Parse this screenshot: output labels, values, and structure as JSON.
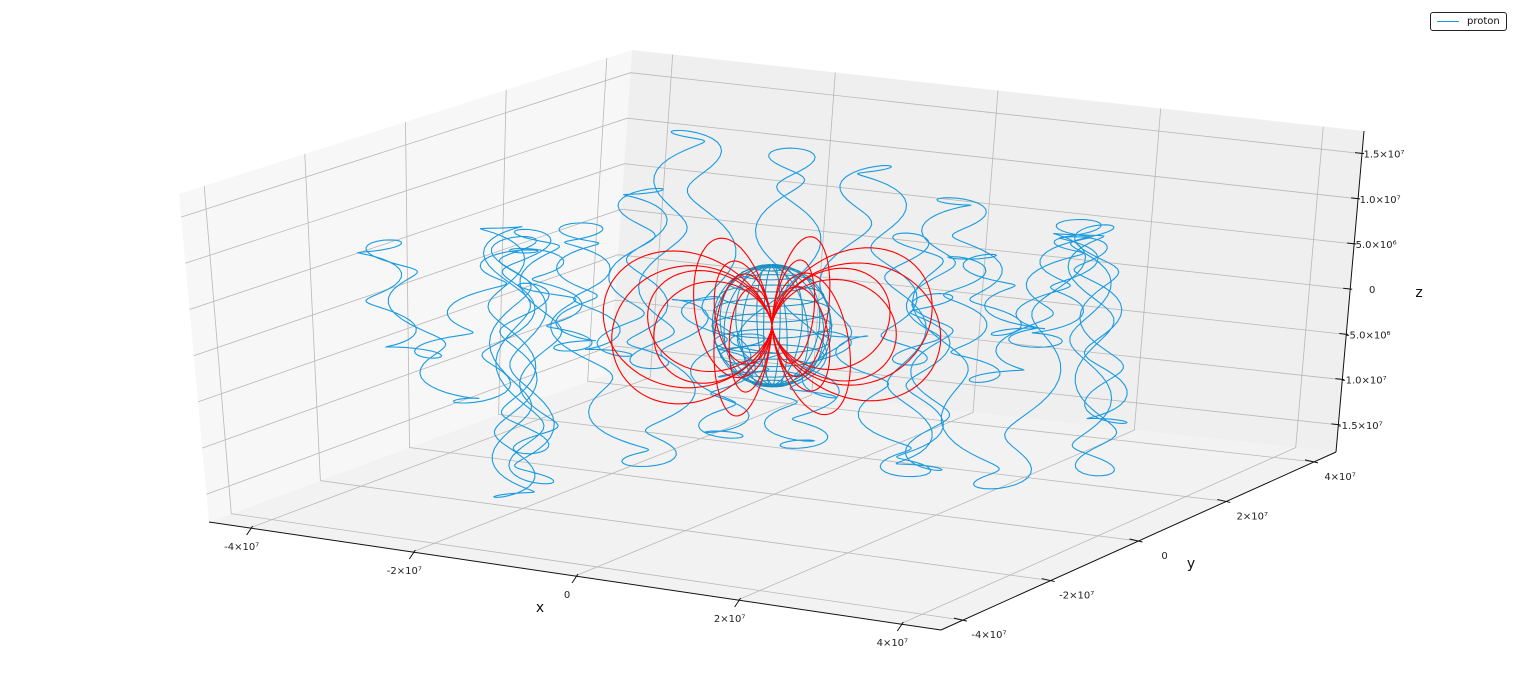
{
  "chart_data": {
    "type": "line",
    "projection": "3d",
    "title": "",
    "xlabel": "x",
    "ylabel": "y",
    "zlabel": "z",
    "xlim": [
      -45000000,
      45000000
    ],
    "ylim": [
      -45000000,
      45000000
    ],
    "zlim": [
      -18000000,
      17500000
    ],
    "x_ticks": [
      {
        "value": -40000000,
        "label": "-4×10⁷"
      },
      {
        "value": -20000000,
        "label": "-2×10⁷"
      },
      {
        "value": 0,
        "label": "0"
      },
      {
        "value": 20000000,
        "label": "2×10⁷"
      },
      {
        "value": 40000000,
        "label": "4×10⁷"
      }
    ],
    "y_ticks": [
      {
        "value": -40000000,
        "label": "-4×10⁷"
      },
      {
        "value": -20000000,
        "label": "-2×10⁷"
      },
      {
        "value": 0,
        "label": "0"
      },
      {
        "value": 20000000,
        "label": "2×10⁷"
      },
      {
        "value": 40000000,
        "label": "4×10⁷"
      }
    ],
    "z_ticks": [
      {
        "value": 15000000,
        "label": "1.5×10⁷"
      },
      {
        "value": 10000000,
        "label": "1.0×10⁷"
      },
      {
        "value": 5000000,
        "label": "5.0×10⁶"
      },
      {
        "value": 0,
        "label": "0"
      },
      {
        "value": -5000000,
        "label": "-5.0×10⁶"
      },
      {
        "value": -10000000,
        "label": "-1.0×10⁷"
      },
      {
        "value": -15000000,
        "label": "-1.5×10⁷"
      }
    ],
    "grid": true,
    "legend_position": "top-right",
    "series": [
      {
        "name": "proton",
        "color": "#1a9be0",
        "kind": "trajectory"
      },
      {
        "color": "#ff0000",
        "kind": "dipole-field-lines"
      },
      {
        "color": "#1a8fc4",
        "kind": "earth-wireframe-sphere"
      }
    ]
  },
  "legend": {
    "label": "proton"
  }
}
